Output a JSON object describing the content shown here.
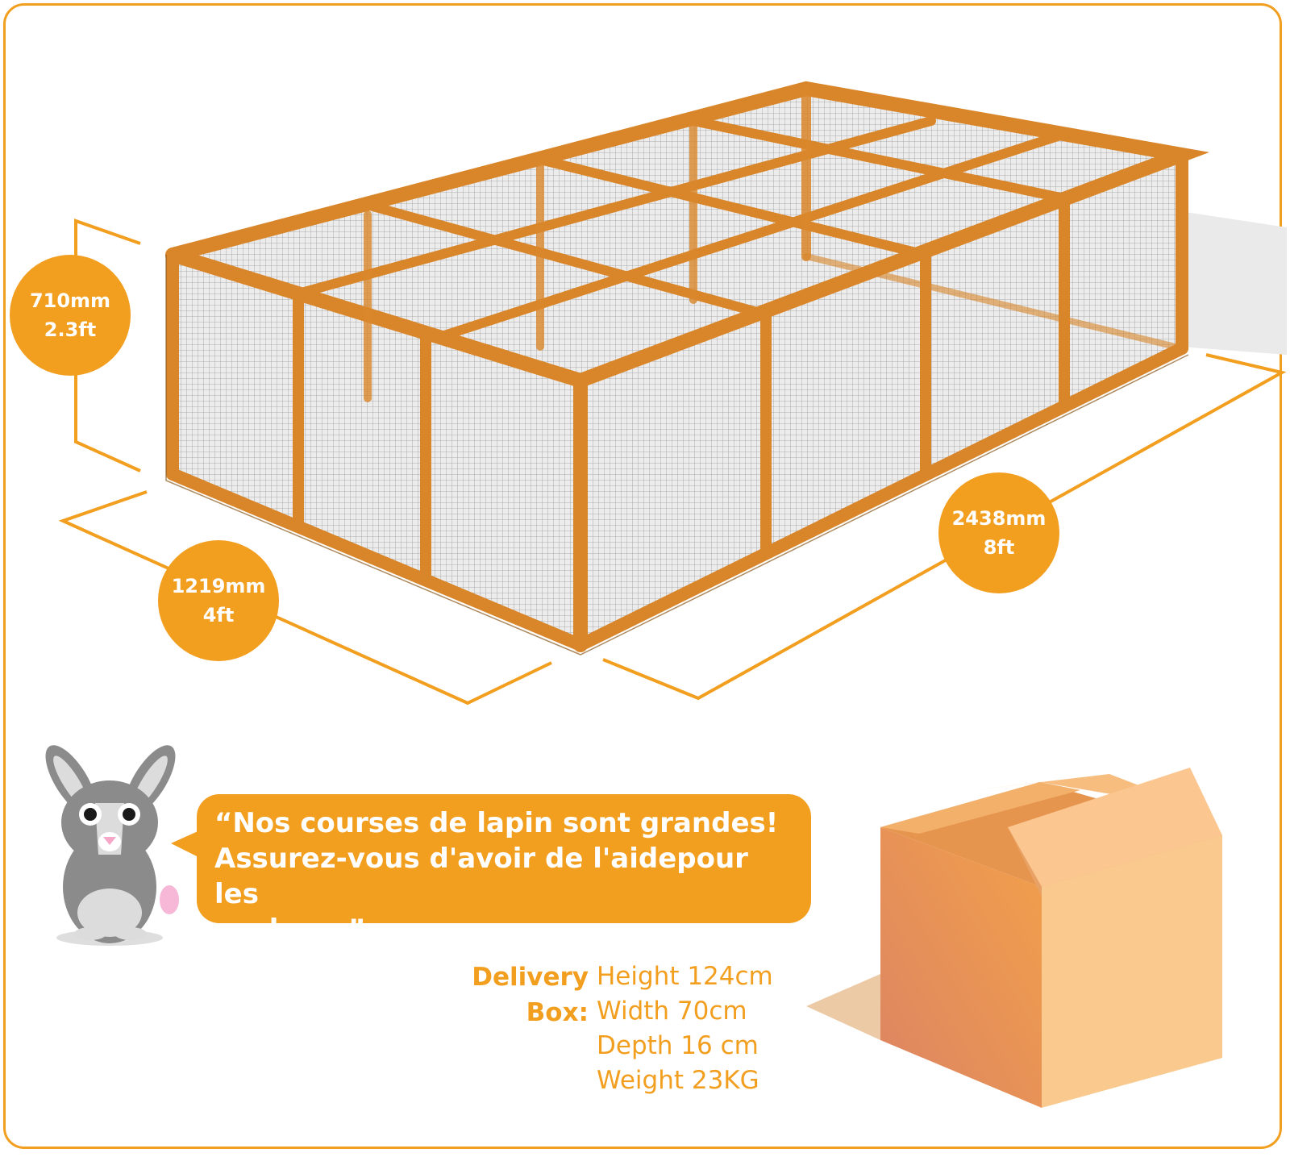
{
  "dimensions": {
    "height": {
      "metric": "710mm",
      "imperial": "2.3ft"
    },
    "width": {
      "metric": "1219mm",
      "imperial": "4ft"
    },
    "length": {
      "metric": "2438mm",
      "imperial": "8ft"
    }
  },
  "speech_bubble": {
    "lines": [
      "“Nos courses de lapin sont grandes!",
      "Assurez-vous d'avoir de l'aidepour les",
      "soulever”"
    ]
  },
  "delivery_box": {
    "label": "Delivery Box:",
    "height": "Height 124cm",
    "width": "Width 70cm",
    "depth": "Depth 16 cm",
    "weight": "Weight 23KG"
  },
  "colors": {
    "accent": "#f29e1f",
    "frame_wood": "#e08b2c",
    "mesh": "#e4e4e4",
    "box_light": "#f9c98e",
    "box_dark": "#e88f47"
  },
  "icons": {
    "mascot": "rabbit-icon",
    "box": "cardboard-box-icon"
  }
}
